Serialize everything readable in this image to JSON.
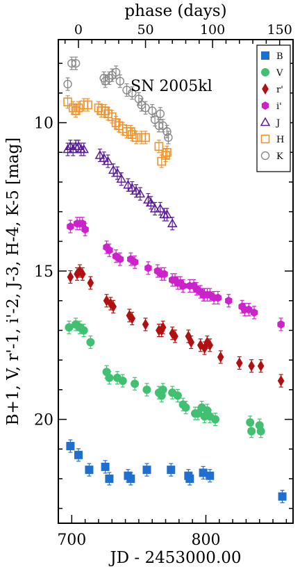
{
  "chart_data": {
    "type": "scatter",
    "title": "",
    "annotation": "SN 2005kl",
    "xlabel": "JD - 2453000.00",
    "x2label": "phase (days)",
    "ylabel": "B+1, V, r'-1, i'-2, J-3, H-4, K-5 [mag]",
    "xlim": [
      690,
      865
    ],
    "ylim": [
      23.5,
      7.2
    ],
    "y_inverted": true,
    "grid": false,
    "legend_position": "top-right",
    "x_ticks": [
      700,
      800
    ],
    "x_tick_labels": [
      "700",
      "800"
    ],
    "y_ticks": [
      10,
      15,
      20
    ],
    "y_tick_labels": [
      "10",
      "15",
      "20"
    ],
    "x2_ticks": [
      0,
      50,
      100,
      150
    ],
    "x2_tick_labels": [
      "0",
      "50",
      "100",
      "150"
    ],
    "phase_zero_jd": 705,
    "series": [
      {
        "name": "B",
        "color": "#1f6fd0",
        "marker": "square-filled",
        "x": [
          699,
          705,
          713,
          725,
          728,
          742,
          744,
          756,
          774,
          787,
          788,
          798,
          803,
          857
        ],
        "y": [
          20.9,
          21.2,
          21.7,
          21.6,
          22.0,
          21.9,
          22.0,
          21.7,
          21.7,
          21.9,
          22.0,
          21.8,
          21.9,
          22.6
        ]
      },
      {
        "name": "V",
        "color": "#40c070",
        "marker": "circle-filled",
        "x": [
          698,
          703,
          706,
          709,
          714,
          726,
          728,
          734,
          738,
          747,
          756,
          765,
          767,
          768,
          775,
          779,
          783,
          785,
          792,
          794,
          797,
          799,
          801,
          803,
          807,
          833,
          834,
          840,
          841
        ],
        "y": [
          16.9,
          16.8,
          16.9,
          17.0,
          17.4,
          18.4,
          18.6,
          18.6,
          18.7,
          18.8,
          19.0,
          19.1,
          19.2,
          19.0,
          19.1,
          19.2,
          19.5,
          19.6,
          19.8,
          19.8,
          19.6,
          19.9,
          19.7,
          19.9,
          20.0,
          20.1,
          20.4,
          20.2,
          20.4
        ]
      },
      {
        "name": "r'",
        "color": "#b01010",
        "marker": "diamond-filled",
        "x": [
          699,
          704,
          706,
          708,
          714,
          726,
          729,
          731,
          743,
          745,
          755,
          765,
          767,
          768,
          775,
          777,
          787,
          789,
          796,
          799,
          801,
          803,
          811,
          825,
          834,
          841,
          856
        ],
        "y": [
          15.2,
          15.1,
          15.0,
          15.1,
          15.4,
          16.0,
          16.1,
          16.2,
          16.5,
          16.6,
          16.8,
          17.0,
          17.0,
          16.9,
          17.1,
          17.2,
          17.2,
          17.4,
          17.5,
          17.6,
          17.4,
          17.5,
          17.9,
          18.1,
          18.2,
          18.2,
          18.7
        ]
      },
      {
        "name": "i'",
        "color": "#cc22cc",
        "marker": "hexagon-filled",
        "x": [
          699,
          704,
          706,
          708,
          710,
          726,
          728,
          733,
          736,
          744,
          747,
          757,
          764,
          767,
          769,
          775,
          777,
          779,
          781,
          783,
          788,
          791,
          793,
          796,
          798,
          799,
          801,
          803,
          806,
          809,
          817,
          827,
          829,
          832,
          836,
          856
        ],
        "y": [
          13.5,
          13.4,
          13.4,
          13.4,
          13.6,
          14.2,
          14.3,
          14.5,
          14.6,
          14.6,
          14.7,
          14.9,
          15.0,
          15.1,
          15.1,
          15.3,
          15.3,
          15.4,
          15.4,
          15.5,
          15.5,
          15.5,
          15.6,
          15.7,
          15.8,
          15.8,
          15.8,
          15.8,
          15.9,
          15.9,
          16.0,
          16.2,
          16.3,
          16.3,
          16.4,
          16.8
        ]
      },
      {
        "name": "J",
        "color": "#5a1a9a",
        "marker": "triangle-open",
        "x": [
          697,
          699,
          701,
          703,
          705,
          707,
          709,
          721,
          724,
          727,
          731,
          734,
          737,
          742,
          745,
          748,
          751,
          757,
          759,
          762,
          766,
          769,
          771,
          775
        ],
        "y": [
          10.9,
          10.8,
          10.9,
          10.8,
          10.8,
          10.9,
          10.9,
          11.1,
          11.2,
          11.3,
          11.6,
          11.7,
          11.9,
          12.1,
          12.2,
          12.3,
          12.4,
          12.6,
          12.7,
          12.9,
          12.9,
          13.1,
          13.1,
          13.4
        ]
      },
      {
        "name": "H",
        "color": "#f0922a",
        "marker": "square-open",
        "x": [
          697,
          701,
          703,
          705,
          709,
          712,
          720,
          722,
          725,
          727,
          730,
          733,
          735,
          738,
          741,
          744,
          745,
          748,
          752,
          755,
          765,
          767,
          770,
          771
        ],
        "y": [
          9.3,
          9.5,
          9.6,
          9.5,
          9.4,
          9.4,
          9.5,
          9.6,
          9.6,
          9.7,
          9.8,
          10.0,
          10.1,
          10.2,
          10.3,
          10.3,
          10.4,
          10.5,
          10.5,
          10.5,
          10.8,
          11.3,
          11.1,
          11.0
        ]
      },
      {
        "name": "K",
        "color": "#888888",
        "marker": "circle-open",
        "x": [
          697,
          700,
          703,
          724,
          725,
          728,
          730,
          733,
          736,
          741,
          745,
          750,
          752,
          755,
          760,
          762,
          765,
          766,
          768,
          771,
          772
        ],
        "y": [
          8.7,
          8.0,
          8.0,
          8.5,
          8.6,
          8.5,
          8.4,
          8.3,
          8.6,
          8.9,
          9.0,
          9.2,
          9.4,
          9.5,
          9.6,
          9.9,
          10.1,
          9.7,
          10.1,
          10.3,
          10.5
        ]
      }
    ]
  }
}
